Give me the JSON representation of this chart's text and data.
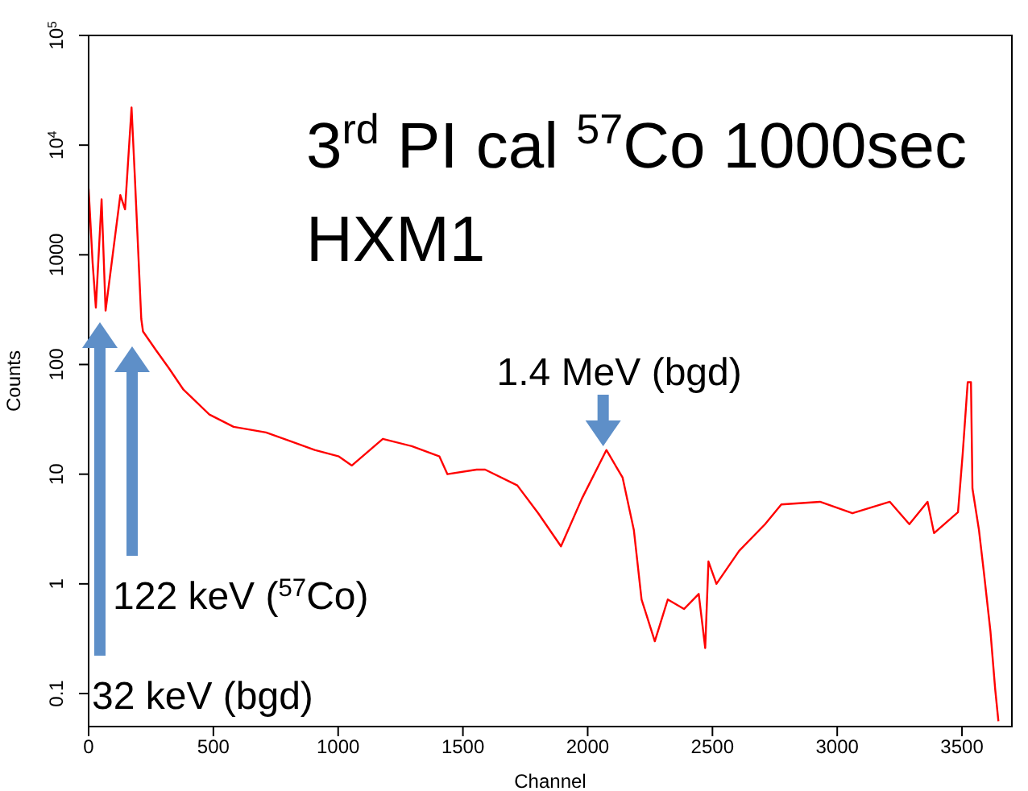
{
  "chart_data": {
    "type": "line",
    "title": "3$^{rd}$ PI cal $^{57}$Co 1000sec\nHXM1",
    "xlabel": "Channel",
    "ylabel": "Counts",
    "log": "y",
    "marker": "none",
    "line_style": "solid",
    "x": [
      0,
      16,
      29,
      52,
      68,
      127,
      146,
      172,
      185,
      211,
      218,
      270,
      321,
      380,
      484,
      581,
      711,
      808,
      906,
      1003,
      1055,
      1179,
      1295,
      1406,
      1438,
      1555,
      1589,
      1718,
      1802,
      1893,
      1977,
      2075,
      2140,
      2185,
      2216,
      2269,
      2321,
      2386,
      2445,
      2471,
      2484,
      2516,
      2607,
      2711,
      2776,
      2931,
      3061,
      3211,
      3289,
      3362,
      3388,
      3484,
      3503,
      3523,
      3536,
      3542,
      3568,
      3588,
      3614,
      3633,
      3646
    ],
    "series": [
      {
        "color": "#ff0000",
        "values": [
          4000,
          850,
          330,
          3200,
          310,
          3500,
          2600,
          22000,
          5300,
          260,
          200,
          135,
          93,
          59,
          35,
          27,
          24,
          20,
          16.6,
          14.5,
          12,
          21,
          18,
          14.5,
          10,
          11,
          11,
          7.9,
          4.4,
          2.2,
          6,
          16.6,
          9.3,
          3.1,
          0.72,
          0.3,
          0.72,
          0.59,
          0.81,
          0.26,
          1.6,
          1,
          2,
          3.5,
          5.3,
          5.6,
          4.4,
          5.6,
          3.5,
          5.6,
          2.9,
          4.5,
          15.5,
          69,
          69,
          7.4,
          3.1,
          1.26,
          0.37,
          0.11,
          0.056
        ]
      }
    ],
    "xlim": [
      0,
      3700
    ],
    "xticks": [
      0,
      500,
      1000,
      1500,
      2000,
      2500,
      3000,
      3500
    ],
    "ylim": [
      0.05,
      100000
    ],
    "yticks": [
      0.1,
      1,
      10,
      100,
      1000,
      {
        "value": 10000,
        "label": "10$^{4}$"
      },
      {
        "value": 100000,
        "label": "10$^{5}$"
      }
    ],
    "annotations": [
      {
        "text": "1.4 MeV (bgd)",
        "x": 2062,
        "y": 18
      },
      "122 keV ($^{57}$Co)",
      "32 keV (bgd)"
    ]
  }
}
